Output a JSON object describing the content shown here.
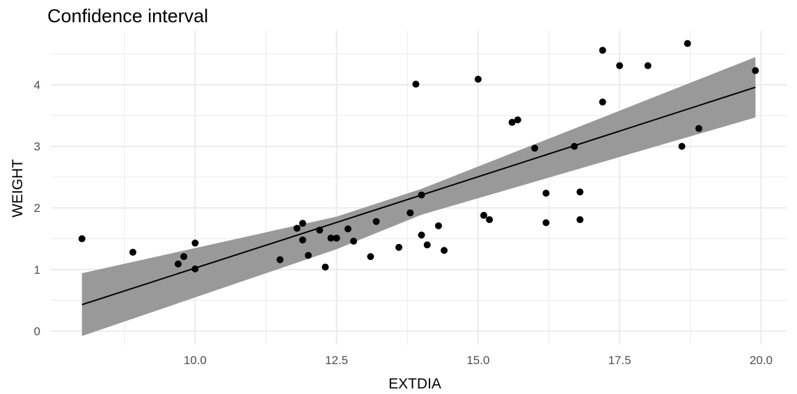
{
  "chart_data": {
    "type": "scatter",
    "title": "Confidence interval",
    "xlabel": "EXTDIA",
    "ylabel": "WEIGHT",
    "xlim": [
      7.45,
      20.45
    ],
    "ylim": [
      -0.22,
      4.88
    ],
    "x_ticks": [
      10.0,
      12.5,
      15.0,
      17.5,
      20.0
    ],
    "x_tick_labels": [
      "10.0",
      "12.5",
      "15.0",
      "17.5",
      "20.0"
    ],
    "y_ticks": [
      0,
      1,
      2,
      3,
      4
    ],
    "y_tick_labels": [
      "0",
      "1",
      "2",
      "3",
      "4"
    ],
    "grid": true,
    "points": [
      {
        "x": 8.0,
        "y": 1.5
      },
      {
        "x": 8.9,
        "y": 1.28
      },
      {
        "x": 9.7,
        "y": 1.09
      },
      {
        "x": 9.8,
        "y": 1.21
      },
      {
        "x": 10.0,
        "y": 1.43
      },
      {
        "x": 10.0,
        "y": 1.01
      },
      {
        "x": 11.5,
        "y": 1.16
      },
      {
        "x": 11.8,
        "y": 1.67
      },
      {
        "x": 11.9,
        "y": 1.75
      },
      {
        "x": 11.9,
        "y": 1.48
      },
      {
        "x": 12.0,
        "y": 1.23
      },
      {
        "x": 12.2,
        "y": 1.64
      },
      {
        "x": 12.3,
        "y": 1.04
      },
      {
        "x": 12.4,
        "y": 1.51
      },
      {
        "x": 12.5,
        "y": 1.51
      },
      {
        "x": 12.7,
        "y": 1.66
      },
      {
        "x": 12.8,
        "y": 1.46
      },
      {
        "x": 13.1,
        "y": 1.21
      },
      {
        "x": 13.2,
        "y": 1.78
      },
      {
        "x": 13.6,
        "y": 1.36
      },
      {
        "x": 13.8,
        "y": 1.92
      },
      {
        "x": 13.9,
        "y": 4.01
      },
      {
        "x": 14.0,
        "y": 2.21
      },
      {
        "x": 14.0,
        "y": 1.56
      },
      {
        "x": 14.1,
        "y": 1.4
      },
      {
        "x": 14.3,
        "y": 1.71
      },
      {
        "x": 14.4,
        "y": 1.31
      },
      {
        "x": 15.0,
        "y": 4.09
      },
      {
        "x": 15.1,
        "y": 1.88
      },
      {
        "x": 15.2,
        "y": 1.81
      },
      {
        "x": 15.6,
        "y": 3.39
      },
      {
        "x": 15.7,
        "y": 3.43
      },
      {
        "x": 16.0,
        "y": 2.97
      },
      {
        "x": 16.2,
        "y": 2.24
      },
      {
        "x": 16.2,
        "y": 1.76
      },
      {
        "x": 16.7,
        "y": 3.0
      },
      {
        "x": 16.8,
        "y": 2.26
      },
      {
        "x": 16.8,
        "y": 1.81
      },
      {
        "x": 17.2,
        "y": 4.56
      },
      {
        "x": 17.2,
        "y": 3.72
      },
      {
        "x": 17.5,
        "y": 4.31
      },
      {
        "x": 18.0,
        "y": 4.31
      },
      {
        "x": 18.6,
        "y": 3.0
      },
      {
        "x": 18.7,
        "y": 4.67
      },
      {
        "x": 18.9,
        "y": 3.29
      },
      {
        "x": 19.9,
        "y": 4.23
      }
    ],
    "fit_line": {
      "x": [
        8.0,
        19.9
      ],
      "y": [
        0.43,
        3.96
      ]
    },
    "confidence_band": {
      "x": [
        8.0,
        12.5,
        14.0,
        19.9
      ],
      "lower": [
        -0.08,
        1.33,
        1.89,
        3.47
      ],
      "upper": [
        0.94,
        1.86,
        2.31,
        4.45
      ]
    },
    "colors": {
      "points": "#000000",
      "line": "#000000",
      "band": "#999999",
      "grid": "#ebebeb"
    }
  }
}
